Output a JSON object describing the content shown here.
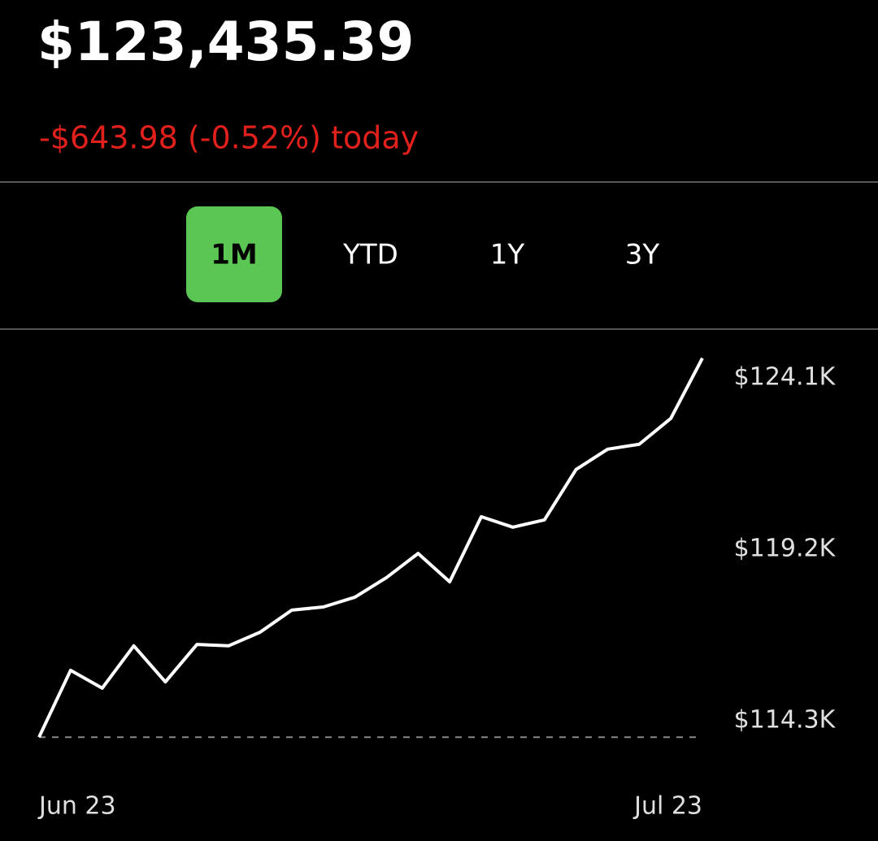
{
  "header": {
    "amount": "$123,435.39",
    "change": "-$643.98 (-0.52%) today"
  },
  "tabs": {
    "items": [
      "1M",
      "YTD",
      "1Y",
      "3Y"
    ],
    "selected": 0,
    "selected_color": "#5cc654"
  },
  "chart_data": {
    "type": "line",
    "categories": [
      "Jun 23",
      null,
      null,
      null,
      null,
      null,
      null,
      null,
      null,
      null,
      null,
      null,
      null,
      null,
      null,
      null,
      null,
      null,
      null,
      null,
      null,
      "Jul 23"
    ],
    "values": [
      113830,
      115740,
      115230,
      116440,
      115410,
      116480,
      116440,
      116830,
      117460,
      117550,
      117830,
      118390,
      119080,
      118270,
      120130,
      119830,
      120040,
      121480,
      122060,
      122200,
      122940,
      124660
    ],
    "color": "#ffffff",
    "ylim": [
      113500,
      124900
    ],
    "yticks": [
      {
        "value": 114300,
        "label": "$114.3K"
      },
      {
        "value": 119200,
        "label": "$119.2K"
      },
      {
        "value": 124100,
        "label": "$124.1K"
      }
    ]
  }
}
